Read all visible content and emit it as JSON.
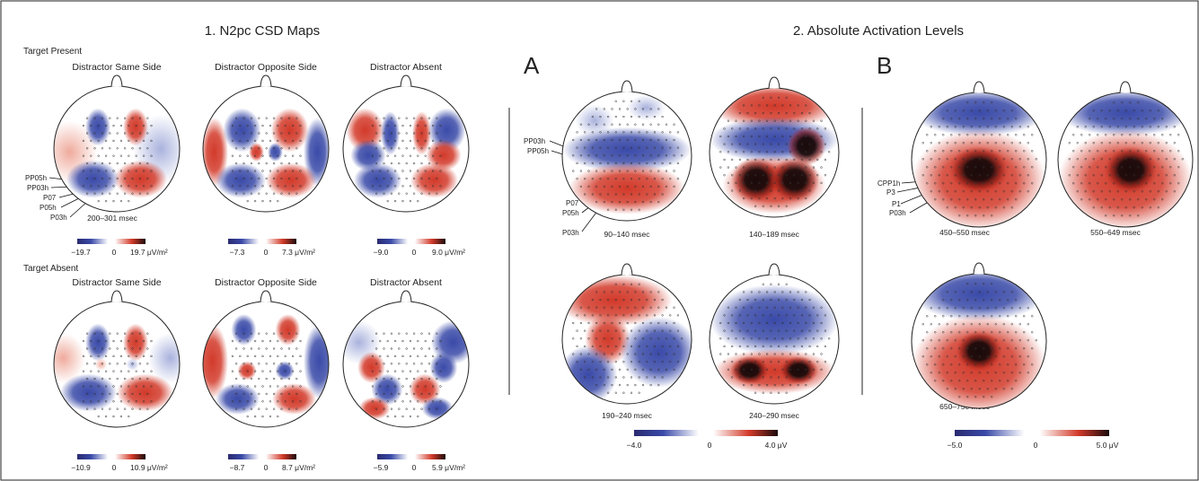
{
  "section1": {
    "title": "1. N2pc CSD Maps",
    "groups": [
      {
        "label": "Target Present",
        "maps": [
          {
            "title": "Distractor Same Side",
            "pattern": "same",
            "time": "200–301 msec",
            "colorbar": {
              "min": "−19.7",
              "zero": "0",
              "max": "19.7 μV/m²"
            },
            "electrode_labels": [
              "PP05h",
              "PP03h",
              "P07",
              "P05h",
              "P03h"
            ]
          },
          {
            "title": "Distractor Opposite Side",
            "pattern": "opposite",
            "colorbar": {
              "min": "−7.3",
              "zero": "0",
              "max": "7.3 μV/m²"
            }
          },
          {
            "title": "Distractor Absent",
            "pattern": "absent",
            "colorbar": {
              "min": "−9.0",
              "zero": "0",
              "max": "9.0 μV/m²"
            }
          }
        ]
      },
      {
        "label": "Target Absent",
        "maps": [
          {
            "title": "Distractor Same Side",
            "pattern": "same2",
            "colorbar": {
              "min": "−10.9",
              "zero": "0",
              "max": "10.9 μV/m²"
            }
          },
          {
            "title": "Distractor Opposite Side",
            "pattern": "opposite2",
            "colorbar": {
              "min": "−8.7",
              "zero": "0",
              "max": "8.7 μV/m²"
            }
          },
          {
            "title": "Distractor Absent",
            "pattern": "absent2",
            "colorbar": {
              "min": "−5.9",
              "zero": "0",
              "max": "5.9 μV/m²"
            }
          }
        ]
      }
    ]
  },
  "section2": {
    "title": "2. Absolute Activation Levels",
    "panelA": {
      "letter": "A",
      "maps": [
        {
          "time": "90–140 msec",
          "pattern": "a1",
          "electrode_labels": [
            "PP03h",
            "PP05h",
            "P07",
            "P05h",
            "P03h"
          ]
        },
        {
          "time": "140–189 msec",
          "pattern": "a2"
        },
        {
          "time": "190–240 msec",
          "pattern": "a3"
        },
        {
          "time": "240–290 msec",
          "pattern": "a4"
        }
      ],
      "colorbar": {
        "min": "−4.0",
        "zero": "0",
        "max": "4.0 μV"
      }
    },
    "panelB": {
      "letter": "B",
      "maps": [
        {
          "time": "450–550 msec",
          "pattern": "b1",
          "electrode_labels": [
            "CPP1h",
            "P3",
            "P1",
            "P03h"
          ]
        },
        {
          "time": "550–649 msec",
          "pattern": "b2"
        },
        {
          "time": "650–750 msec",
          "pattern": "b3"
        }
      ],
      "colorbar": {
        "min": "−5.0",
        "zero": "0",
        "max": "5.0 μV"
      }
    }
  },
  "colors": {
    "negative": "#3a4aa8",
    "negative_light": "#a9b2dd",
    "positive": "#d23a2a",
    "positive_light": "#efaa9c",
    "extreme": "#1a0a0a",
    "neutral": "#ffffff"
  }
}
